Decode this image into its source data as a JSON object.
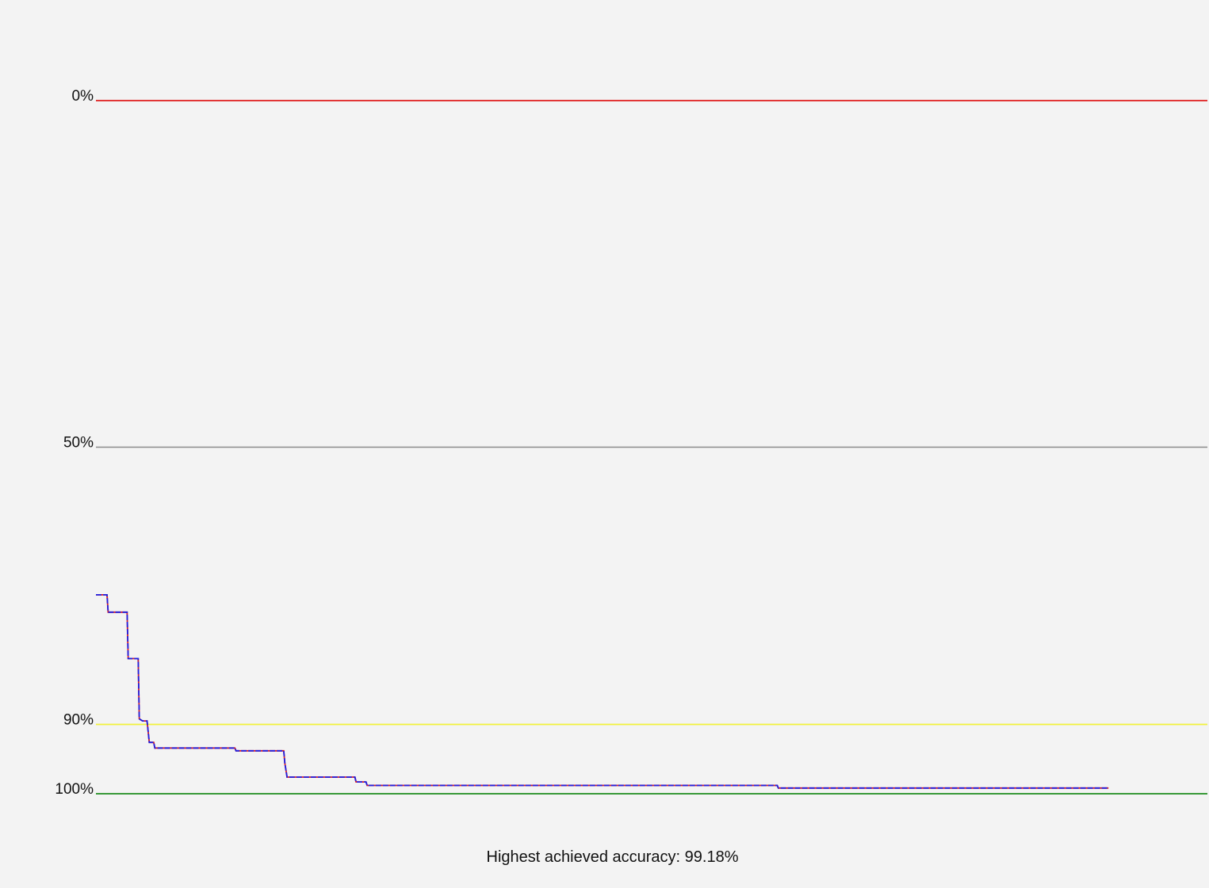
{
  "chart_data": {
    "type": "line",
    "title": "",
    "xlabel": "",
    "ylabel": "",
    "ylim": [
      0,
      100
    ],
    "y_inverted": true,
    "xlim": [
      0,
      100
    ],
    "grid": false,
    "legend": "none",
    "reference_lines": [
      {
        "value": 0,
        "label": "0%",
        "color": "#e01b1b"
      },
      {
        "value": 50,
        "label": "50%",
        "color": "#8a8a8a"
      },
      {
        "value": 90,
        "label": "90%",
        "color": "#f2f23a"
      },
      {
        "value": 100,
        "label": "100%",
        "color": "#1e8c1e"
      }
    ],
    "series": [
      {
        "color": "#e01b1b",
        "x": [
          0,
          1.0,
          1.1,
          2.8,
          2.9,
          3.8,
          3.9,
          4.2,
          4.6,
          4.8,
          5.2,
          5.3,
          12.5,
          12.6,
          16.9,
          17.0,
          17.2,
          23.3,
          23.4,
          24.3,
          24.4,
          61.3,
          61.4,
          91.1
        ],
        "y": [
          71.3,
          71.3,
          73.8,
          73.8,
          80.5,
          80.5,
          89.2,
          89.5,
          89.5,
          92.6,
          92.6,
          93.4,
          93.4,
          93.8,
          93.8,
          95.6,
          97.6,
          97.6,
          98.3,
          98.3,
          98.8,
          98.8,
          99.18,
          99.18
        ],
        "dashed": false
      },
      {
        "color": "#1f1fe0",
        "x": [
          0,
          1.0,
          1.1,
          2.8,
          2.9,
          3.8,
          3.9,
          4.2,
          4.6,
          4.8,
          5.2,
          5.3,
          12.5,
          12.6,
          16.9,
          17.0,
          17.2,
          23.3,
          23.4,
          24.3,
          24.4,
          61.3,
          61.4,
          91.1
        ],
        "y": [
          71.3,
          71.3,
          73.8,
          73.8,
          80.5,
          80.5,
          89.2,
          89.5,
          89.5,
          92.6,
          92.6,
          93.4,
          93.4,
          93.8,
          93.8,
          95.6,
          97.6,
          97.6,
          98.3,
          98.3,
          98.8,
          98.8,
          99.18,
          99.18
        ],
        "dashed": true
      }
    ],
    "caption": "Highest achieved accuracy: 99.18%"
  }
}
